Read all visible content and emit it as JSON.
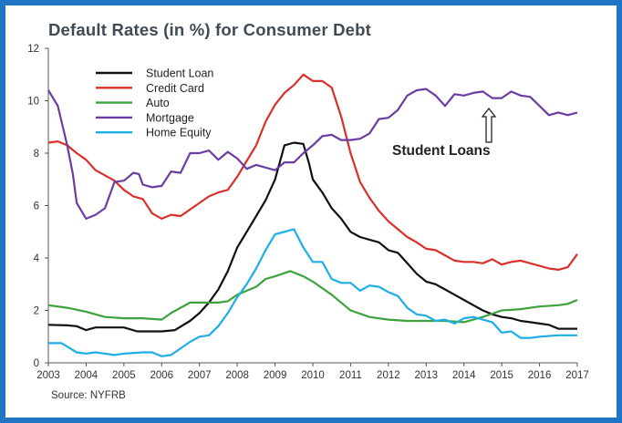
{
  "chart_data": {
    "type": "line",
    "title": "Default Rates (in %) for Consumer Debt",
    "source": "Source: NYFRB",
    "annotation": "Student Loans",
    "xlim": [
      2003,
      2017
    ],
    "ylim": [
      0,
      12
    ],
    "xticks": [
      "2003",
      "2004",
      "2005",
      "2006",
      "2007",
      "2008",
      "2009",
      "2010",
      "2011",
      "2012",
      "2013",
      "2014",
      "2015",
      "2016",
      "2017"
    ],
    "yticks": [
      "0",
      "2",
      "4",
      "6",
      "8",
      "10",
      "12"
    ],
    "legend_position": "top-left",
    "grid": false,
    "series": [
      {
        "name": "Student Loan",
        "color": "#111111",
        "points": [
          [
            2003,
            1.45
          ],
          [
            2003.5,
            1.43
          ],
          [
            2003.75,
            1.4
          ],
          [
            2004,
            1.25
          ],
          [
            2004.25,
            1.35
          ],
          [
            2004.75,
            1.35
          ],
          [
            2005,
            1.35
          ],
          [
            2005.35,
            1.2
          ],
          [
            2006,
            1.2
          ],
          [
            2006.35,
            1.25
          ],
          [
            2006.75,
            1.6
          ],
          [
            2007,
            1.9
          ],
          [
            2007.25,
            2.3
          ],
          [
            2007.5,
            2.8
          ],
          [
            2007.75,
            3.5
          ],
          [
            2008,
            4.4
          ],
          [
            2008.25,
            5.0
          ],
          [
            2008.5,
            5.6
          ],
          [
            2008.75,
            6.2
          ],
          [
            2009,
            7.0
          ],
          [
            2009.25,
            8.3
          ],
          [
            2009.5,
            8.4
          ],
          [
            2009.75,
            8.35
          ],
          [
            2009.9,
            7.6
          ],
          [
            2010,
            7.0
          ],
          [
            2010.25,
            6.5
          ],
          [
            2010.5,
            5.9
          ],
          [
            2010.75,
            5.5
          ],
          [
            2011,
            5.0
          ],
          [
            2011.25,
            4.8
          ],
          [
            2011.5,
            4.7
          ],
          [
            2011.75,
            4.6
          ],
          [
            2012,
            4.3
          ],
          [
            2012.25,
            4.2
          ],
          [
            2012.5,
            3.8
          ],
          [
            2012.75,
            3.4
          ],
          [
            2013,
            3.1
          ],
          [
            2013.25,
            3.0
          ],
          [
            2013.5,
            2.8
          ],
          [
            2013.75,
            2.6
          ],
          [
            2014,
            2.4
          ],
          [
            2014.25,
            2.2
          ],
          [
            2014.5,
            2.0
          ],
          [
            2014.75,
            1.85
          ],
          [
            2015,
            1.75
          ],
          [
            2015.25,
            1.7
          ],
          [
            2015.5,
            1.6
          ],
          [
            2015.75,
            1.55
          ],
          [
            2016,
            1.5
          ],
          [
            2016.25,
            1.45
          ],
          [
            2016.5,
            1.3
          ],
          [
            2017,
            1.3
          ]
        ]
      },
      {
        "name": "Credit Card",
        "color": "#d9302b",
        "points": [
          [
            2003,
            8.4
          ],
          [
            2003.25,
            8.45
          ],
          [
            2003.5,
            8.3
          ],
          [
            2003.75,
            8.0
          ],
          [
            2004,
            7.75
          ],
          [
            2004.25,
            7.35
          ],
          [
            2004.5,
            7.15
          ],
          [
            2004.75,
            6.95
          ],
          [
            2005,
            6.6
          ],
          [
            2005.25,
            6.35
          ],
          [
            2005.5,
            6.25
          ],
          [
            2005.75,
            5.7
          ],
          [
            2006,
            5.5
          ],
          [
            2006.25,
            5.65
          ],
          [
            2006.5,
            5.6
          ],
          [
            2006.75,
            5.85
          ],
          [
            2007,
            6.1
          ],
          [
            2007.25,
            6.35
          ],
          [
            2007.5,
            6.5
          ],
          [
            2007.75,
            6.6
          ],
          [
            2008,
            7.1
          ],
          [
            2008.25,
            7.7
          ],
          [
            2008.5,
            8.3
          ],
          [
            2008.75,
            9.2
          ],
          [
            2009,
            9.85
          ],
          [
            2009.25,
            10.3
          ],
          [
            2009.5,
            10.6
          ],
          [
            2009.75,
            11.0
          ],
          [
            2010,
            10.75
          ],
          [
            2010.25,
            10.75
          ],
          [
            2010.5,
            10.5
          ],
          [
            2010.75,
            9.4
          ],
          [
            2011,
            8.0
          ],
          [
            2011.25,
            6.9
          ],
          [
            2011.5,
            6.3
          ],
          [
            2011.75,
            5.8
          ],
          [
            2012,
            5.4
          ],
          [
            2012.25,
            5.1
          ],
          [
            2012.5,
            4.8
          ],
          [
            2012.75,
            4.6
          ],
          [
            2013,
            4.35
          ],
          [
            2013.25,
            4.3
          ],
          [
            2013.5,
            4.1
          ],
          [
            2013.75,
            3.9
          ],
          [
            2014,
            3.85
          ],
          [
            2014.25,
            3.85
          ],
          [
            2014.5,
            3.8
          ],
          [
            2014.75,
            3.95
          ],
          [
            2015,
            3.75
          ],
          [
            2015.25,
            3.85
          ],
          [
            2015.5,
            3.9
          ],
          [
            2015.75,
            3.8
          ],
          [
            2016,
            3.7
          ],
          [
            2016.25,
            3.6
          ],
          [
            2016.5,
            3.55
          ],
          [
            2016.75,
            3.65
          ],
          [
            2017,
            4.15
          ]
        ]
      },
      {
        "name": "Auto",
        "color": "#3da23d",
        "points": [
          [
            2003,
            2.2
          ],
          [
            2003.5,
            2.1
          ],
          [
            2004,
            1.95
          ],
          [
            2004.5,
            1.75
          ],
          [
            2005,
            1.7
          ],
          [
            2005.5,
            1.7
          ],
          [
            2006,
            1.65
          ],
          [
            2006.25,
            1.9
          ],
          [
            2006.75,
            2.3
          ],
          [
            2007,
            2.3
          ],
          [
            2007.5,
            2.3
          ],
          [
            2007.75,
            2.35
          ],
          [
            2008,
            2.6
          ],
          [
            2008.25,
            2.75
          ],
          [
            2008.5,
            2.9
          ],
          [
            2008.75,
            3.2
          ],
          [
            2009,
            3.3
          ],
          [
            2009.4,
            3.5
          ],
          [
            2009.75,
            3.3
          ],
          [
            2010,
            3.1
          ],
          [
            2010.5,
            2.6
          ],
          [
            2011,
            2.0
          ],
          [
            2011.5,
            1.75
          ],
          [
            2012,
            1.65
          ],
          [
            2012.5,
            1.6
          ],
          [
            2013,
            1.6
          ],
          [
            2013.5,
            1.6
          ],
          [
            2014,
            1.55
          ],
          [
            2014.5,
            1.75
          ],
          [
            2015,
            2.0
          ],
          [
            2015.5,
            2.05
          ],
          [
            2016,
            2.15
          ],
          [
            2016.5,
            2.2
          ],
          [
            2016.75,
            2.25
          ],
          [
            2017,
            2.4
          ]
        ]
      },
      {
        "name": "Mortgage",
        "color": "#6a3ea1",
        "points": [
          [
            2003,
            10.4
          ],
          [
            2003.25,
            9.8
          ],
          [
            2003.5,
            8.3
          ],
          [
            2003.65,
            7.2
          ],
          [
            2003.75,
            6.1
          ],
          [
            2004,
            5.5
          ],
          [
            2004.25,
            5.65
          ],
          [
            2004.5,
            5.9
          ],
          [
            2004.75,
            6.9
          ],
          [
            2005,
            6.95
          ],
          [
            2005.25,
            7.25
          ],
          [
            2005.4,
            7.2
          ],
          [
            2005.5,
            6.8
          ],
          [
            2005.75,
            6.7
          ],
          [
            2006,
            6.75
          ],
          [
            2006.25,
            7.3
          ],
          [
            2006.5,
            7.25
          ],
          [
            2006.75,
            8.0
          ],
          [
            2007,
            8.0
          ],
          [
            2007.25,
            8.1
          ],
          [
            2007.5,
            7.75
          ],
          [
            2007.75,
            8.05
          ],
          [
            2008,
            7.8
          ],
          [
            2008.25,
            7.4
          ],
          [
            2008.5,
            7.55
          ],
          [
            2008.75,
            7.45
          ],
          [
            2009,
            7.35
          ],
          [
            2009.25,
            7.65
          ],
          [
            2009.5,
            7.65
          ],
          [
            2009.75,
            8.0
          ],
          [
            2010,
            8.3
          ],
          [
            2010.25,
            8.65
          ],
          [
            2010.5,
            8.7
          ],
          [
            2010.75,
            8.5
          ],
          [
            2011,
            8.5
          ],
          [
            2011.25,
            8.55
          ],
          [
            2011.5,
            8.75
          ],
          [
            2011.75,
            9.3
          ],
          [
            2012,
            9.35
          ],
          [
            2012.25,
            9.65
          ],
          [
            2012.5,
            10.2
          ],
          [
            2012.75,
            10.4
          ],
          [
            2013,
            10.45
          ],
          [
            2013.25,
            10.2
          ],
          [
            2013.5,
            9.8
          ],
          [
            2013.75,
            10.25
          ],
          [
            2014,
            10.2
          ],
          [
            2014.25,
            10.3
          ],
          [
            2014.5,
            10.35
          ],
          [
            2014.75,
            10.1
          ],
          [
            2015,
            10.1
          ],
          [
            2015.25,
            10.35
          ],
          [
            2015.5,
            10.2
          ],
          [
            2015.75,
            10.15
          ],
          [
            2016,
            9.8
          ],
          [
            2016.25,
            9.45
          ],
          [
            2016.5,
            9.55
          ],
          [
            2016.75,
            9.45
          ],
          [
            2017,
            9.55
          ]
        ]
      },
      {
        "name": "Home Equity",
        "color": "#1eaee6",
        "points": [
          [
            2003,
            0.75
          ],
          [
            2003.35,
            0.75
          ],
          [
            2003.75,
            0.4
          ],
          [
            2004,
            0.35
          ],
          [
            2004.25,
            0.4
          ],
          [
            2004.75,
            0.3
          ],
          [
            2005,
            0.35
          ],
          [
            2005.5,
            0.4
          ],
          [
            2005.75,
            0.4
          ],
          [
            2006,
            0.25
          ],
          [
            2006.25,
            0.3
          ],
          [
            2006.75,
            0.8
          ],
          [
            2007,
            1.0
          ],
          [
            2007.25,
            1.05
          ],
          [
            2007.5,
            1.4
          ],
          [
            2007.75,
            1.9
          ],
          [
            2008,
            2.5
          ],
          [
            2008.25,
            3.0
          ],
          [
            2008.5,
            3.6
          ],
          [
            2008.75,
            4.3
          ],
          [
            2009,
            4.9
          ],
          [
            2009.25,
            5.0
          ],
          [
            2009.5,
            5.1
          ],
          [
            2009.75,
            4.4
          ],
          [
            2010,
            3.85
          ],
          [
            2010.25,
            3.85
          ],
          [
            2010.5,
            3.2
          ],
          [
            2010.75,
            3.05
          ],
          [
            2011,
            3.05
          ],
          [
            2011.25,
            2.75
          ],
          [
            2011.5,
            2.95
          ],
          [
            2011.75,
            2.9
          ],
          [
            2012,
            2.7
          ],
          [
            2012.25,
            2.55
          ],
          [
            2012.5,
            2.1
          ],
          [
            2012.75,
            1.85
          ],
          [
            2013,
            1.8
          ],
          [
            2013.25,
            1.6
          ],
          [
            2013.5,
            1.65
          ],
          [
            2013.75,
            1.5
          ],
          [
            2014,
            1.7
          ],
          [
            2014.25,
            1.75
          ],
          [
            2014.5,
            1.65
          ],
          [
            2014.75,
            1.55
          ],
          [
            2015,
            1.15
          ],
          [
            2015.25,
            1.2
          ],
          [
            2015.5,
            0.95
          ],
          [
            2015.75,
            0.95
          ],
          [
            2016,
            1.0
          ],
          [
            2016.5,
            1.05
          ],
          [
            2017,
            1.05
          ]
        ]
      }
    ]
  }
}
